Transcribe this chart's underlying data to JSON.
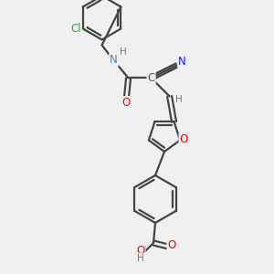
{
  "bg_color": "#f0f0f0",
  "bond_color": "#444444",
  "atom_colors": {
    "O": "#ff0000",
    "N": "#4488bb",
    "Cl": "#33aa33",
    "C": "#555555",
    "H": "#777777",
    "N2": "#1a1aff"
  },
  "lw": 1.6,
  "fs": 8.5,
  "fs_small": 7.5,
  "figsize": [
    3.0,
    3.0
  ],
  "dpi": 100,
  "xlim": [
    0,
    300
  ],
  "ylim": [
    0,
    300
  ]
}
